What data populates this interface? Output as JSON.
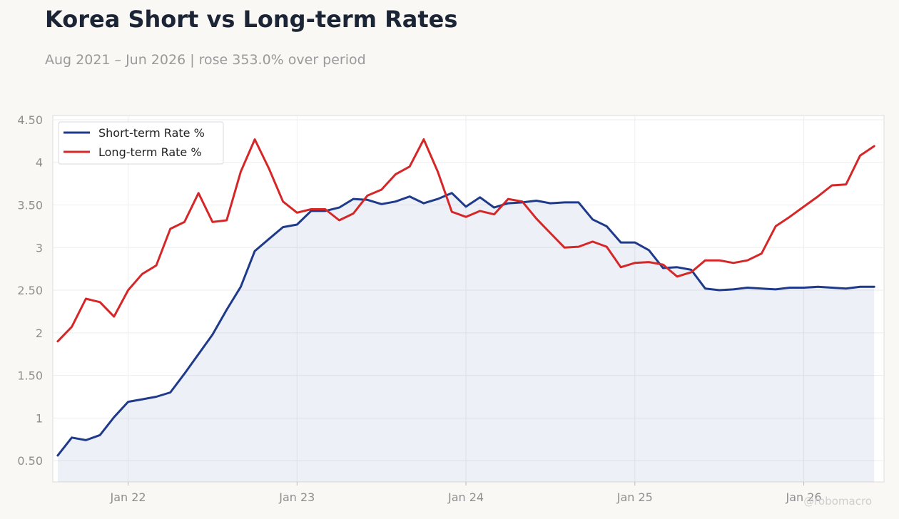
{
  "chart_data": {
    "type": "line",
    "title": "Korea Short vs Long-term Rates",
    "subtitle": "Aug 2021 – Jun 2026 | rose 353.0% over period",
    "xlabel": "",
    "ylabel": "",
    "x_range": [
      "2021-08",
      "2026-07"
    ],
    "ylim": [
      0.25,
      4.55
    ],
    "yticks": [
      0.5,
      1,
      1.5,
      2,
      2.5,
      3,
      3.5,
      4,
      4.5
    ],
    "ytick_labels": [
      "0.50",
      "1",
      "1.50",
      "2",
      "2.50",
      "3",
      "3.50",
      "4",
      "4.50"
    ],
    "xticks": [
      "2022-01",
      "2023-01",
      "2024-01",
      "2025-01",
      "2026-01"
    ],
    "xtick_labels": [
      "Jan 22",
      "Jan 23",
      "Jan 24",
      "Jan 25",
      "Jan 26"
    ],
    "grid": true,
    "legend_position": "top-left",
    "x": [
      "2021-08",
      "2021-09",
      "2021-10",
      "2021-11",
      "2021-12",
      "2022-01",
      "2022-02",
      "2022-03",
      "2022-04",
      "2022-05",
      "2022-06",
      "2022-07",
      "2022-08",
      "2022-09",
      "2022-10",
      "2022-11",
      "2022-12",
      "2023-01",
      "2023-02",
      "2023-03",
      "2023-04",
      "2023-05",
      "2023-06",
      "2023-07",
      "2023-08",
      "2023-09",
      "2023-10",
      "2023-11",
      "2023-12",
      "2024-01",
      "2024-02",
      "2024-03",
      "2024-04",
      "2024-05",
      "2024-06",
      "2024-07",
      "2024-08",
      "2024-09",
      "2024-10",
      "2024-11",
      "2024-12",
      "2025-01",
      "2025-02",
      "2025-03",
      "2025-04",
      "2025-05",
      "2025-06",
      "2025-07",
      "2025-08",
      "2025-09",
      "2025-10",
      "2025-11",
      "2025-12",
      "2026-01",
      "2026-02",
      "2026-03",
      "2026-04",
      "2026-05",
      "2026-06"
    ],
    "series": [
      {
        "name": "Short-term Rate %",
        "color": "#1f3a8a",
        "fill": true,
        "values": [
          0.56,
          0.77,
          0.74,
          0.8,
          1.01,
          1.19,
          1.22,
          1.25,
          1.3,
          1.52,
          1.75,
          1.98,
          2.27,
          2.54,
          2.96,
          3.1,
          3.24,
          3.27,
          3.43,
          3.43,
          3.47,
          3.57,
          3.56,
          3.51,
          3.54,
          3.6,
          3.52,
          3.57,
          3.64,
          3.48,
          3.59,
          3.47,
          3.52,
          3.53,
          3.55,
          3.52,
          3.53,
          3.53,
          3.33,
          3.25,
          3.06,
          3.06,
          2.97,
          2.76,
          2.77,
          2.74,
          2.52,
          2.5,
          2.51,
          2.53,
          2.52,
          2.51,
          2.53,
          2.53,
          2.54,
          2.53,
          2.52,
          2.54,
          2.54
        ]
      },
      {
        "name": "Long-term Rate %",
        "color": "#d62728",
        "fill": false,
        "values": [
          1.9,
          2.07,
          2.4,
          2.36,
          2.19,
          2.5,
          2.69,
          2.79,
          3.22,
          3.3,
          3.64,
          3.3,
          3.32,
          3.89,
          4.27,
          3.93,
          3.54,
          3.41,
          3.45,
          3.45,
          3.32,
          3.4,
          3.61,
          3.68,
          3.86,
          3.95,
          4.27,
          3.89,
          3.42,
          3.36,
          3.43,
          3.39,
          3.57,
          3.54,
          3.34,
          3.17,
          3.0,
          3.01,
          3.07,
          3.01,
          2.77,
          2.82,
          2.83,
          2.8,
          2.66,
          2.71,
          2.85,
          2.85,
          2.82,
          2.85,
          2.93,
          3.25,
          3.36,
          3.48,
          3.6,
          3.73,
          3.74,
          4.08,
          4.19
        ]
      }
    ]
  },
  "watermark": "@robomacro"
}
